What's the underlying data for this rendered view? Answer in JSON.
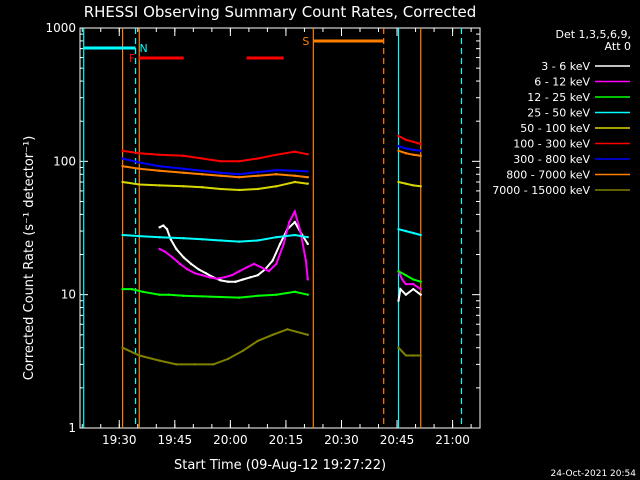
{
  "chart_data": {
    "type": "line",
    "title": "RHESSI Observing Summary Count Rates, Corrected",
    "xlabel": "Start Time (09-Aug-12 19:27:22)",
    "ylabel": "Corrected Count Rate (s⁻¹ detector⁻¹)",
    "y_scale": "log",
    "ylim": [
      1,
      1000
    ],
    "xlim_minutes_from_start": [
      -8,
      100
    ],
    "x_ticks": [
      {
        "label": "19:30",
        "t": 2.6
      },
      {
        "label": "19:45",
        "t": 17.6
      },
      {
        "label": "20:00",
        "t": 32.6
      },
      {
        "label": "20:15",
        "t": 47.6
      },
      {
        "label": "20:30",
        "t": 62.6
      },
      {
        "label": "20:45",
        "t": 77.6
      },
      {
        "label": "21:00",
        "t": 92.6
      }
    ],
    "y_ticks": [
      {
        "label": "1",
        "v": 1
      },
      {
        "label": "10",
        "v": 10
      },
      {
        "label": "100",
        "v": 100
      },
      {
        "label": "1000",
        "v": 1000
      }
    ],
    "legend_header": [
      "Det 1,3,5,6,9,",
      "Att 0"
    ],
    "legend_position": "right",
    "series": [
      {
        "name": "3 - 6 keV",
        "color": "#ffffff",
        "x": [
          13.5,
          14.5,
          15.5,
          16.5,
          18,
          20,
          22,
          24,
          26,
          28,
          30,
          32,
          34,
          36,
          38,
          40,
          42,
          44,
          46,
          48,
          50,
          52,
          53.5,
          78,
          78.5,
          80,
          82,
          84
        ],
        "y": [
          32,
          33,
          31,
          26,
          22,
          19,
          17,
          15.5,
          14.5,
          13.5,
          12.8,
          12.5,
          12.5,
          13,
          13.5,
          14,
          15.5,
          18,
          24,
          31,
          35,
          28,
          24,
          9,
          11,
          10,
          11,
          10
        ]
      },
      {
        "name": "6 - 12 keV",
        "color": "#ff00ff",
        "x": [
          13.5,
          15,
          17,
          19,
          21,
          23,
          25,
          27,
          29,
          31,
          33,
          35,
          37,
          39,
          41,
          43,
          45,
          47,
          48.5,
          50,
          51.5,
          53,
          53.5,
          78,
          79,
          80,
          82,
          84
        ],
        "y": [
          22,
          21,
          19,
          17,
          15.5,
          14.5,
          14,
          13.5,
          13.2,
          13.5,
          14,
          15,
          16,
          17,
          16,
          15,
          17,
          24,
          35,
          42,
          30,
          18,
          13,
          15,
          13,
          12,
          12,
          11
        ]
      },
      {
        "name": "12 - 25 keV",
        "color": "#00ff00",
        "x": [
          3.5,
          6,
          9,
          13.5,
          16,
          20,
          25,
          30,
          35,
          40,
          45,
          50,
          53.5,
          78,
          80,
          82,
          84
        ],
        "y": [
          11,
          11,
          10.5,
          10,
          10,
          9.8,
          9.7,
          9.6,
          9.5,
          9.8,
          10,
          10.5,
          10,
          15,
          14,
          13,
          12.5
        ]
      },
      {
        "name": "25 - 50 keV",
        "color": "#00ffff",
        "x": [
          3.5,
          8,
          13.5,
          20,
          25,
          30,
          35,
          40,
          45,
          50,
          53.5,
          78,
          80,
          82,
          84
        ],
        "y": [
          28,
          27.5,
          27,
          26.5,
          26,
          25.5,
          25,
          25.5,
          27,
          28,
          27,
          31,
          30,
          29,
          28
        ]
      },
      {
        "name": "50 - 100 keV",
        "color": "#d8d800",
        "x": [
          3.5,
          8,
          13.5,
          20,
          25,
          30,
          35,
          40,
          45,
          50,
          53.5,
          78,
          80,
          82,
          84
        ],
        "y": [
          70,
          67,
          66,
          65,
          64,
          62,
          61,
          62,
          65,
          70,
          68,
          70,
          68,
          66,
          65
        ]
      },
      {
        "name": "100 - 300 keV",
        "color": "#ff0000",
        "x": [
          3.5,
          8,
          13.5,
          20,
          25,
          30,
          35,
          40,
          45,
          50,
          53.5,
          78,
          80,
          82,
          84
        ],
        "y": [
          120,
          115,
          112,
          110,
          105,
          100,
          100,
          105,
          112,
          118,
          113,
          155,
          145,
          140,
          135
        ]
      },
      {
        "name": "300 - 800 keV",
        "color": "#0000ff",
        "x": [
          3.5,
          8,
          13.5,
          20,
          25,
          30,
          35,
          40,
          45,
          50,
          53.5,
          78,
          80,
          82,
          84
        ],
        "y": [
          105,
          98,
          92,
          88,
          85,
          82,
          80,
          83,
          86,
          85,
          84,
          130,
          125,
          122,
          120
        ]
      },
      {
        "name": "800 - 7000 keV",
        "color": "#ff8000",
        "x": [
          3.5,
          8,
          13.5,
          20,
          25,
          30,
          35,
          40,
          45,
          50,
          53.5,
          78,
          80,
          82,
          84
        ],
        "y": [
          92,
          88,
          85,
          82,
          80,
          78,
          76,
          78,
          80,
          78,
          76,
          120,
          115,
          112,
          110
        ]
      },
      {
        "name": "7000 - 15000 keV",
        "color": "#808000",
        "x": [
          3.5,
          8,
          13.5,
          18,
          23,
          28,
          32,
          36,
          40,
          44,
          48,
          53.5,
          78,
          80,
          82,
          84
        ],
        "y": [
          4,
          3.5,
          3.2,
          3,
          3,
          3,
          3.3,
          3.8,
          4.5,
          5,
          5.5,
          5,
          4,
          3.5,
          3.5,
          3.5
        ]
      }
    ],
    "flags": [
      {
        "label": "N",
        "color": "#00ffff",
        "segments": [
          [
            -7,
            7
          ]
        ]
      },
      {
        "label": "F",
        "color": "#ff0000",
        "segments": [
          [
            8,
            20
          ],
          [
            37,
            47
          ]
        ]
      },
      {
        "label": "S",
        "color": "#ff8000",
        "segments": [
          [
            55,
            74
          ]
        ]
      }
    ],
    "vlines": [
      {
        "t": -7,
        "color": "#00ffff",
        "style": "solid"
      },
      {
        "t": 7,
        "color": "#00ffff",
        "style": "dash"
      },
      {
        "t": 3.5,
        "color": "#ff8000",
        "style": "solid"
      },
      {
        "t": 8,
        "color": "#ff8000",
        "style": "solid"
      },
      {
        "t": 55,
        "color": "#ff8000",
        "style": "solid"
      },
      {
        "t": 74,
        "color": "#ff8000",
        "style": "dash"
      },
      {
        "t": 78,
        "color": "#00ffff",
        "style": "solid"
      },
      {
        "t": 84,
        "color": "#ff8000",
        "style": "solid"
      },
      {
        "t": 95,
        "color": "#00ffff",
        "style": "dash"
      }
    ],
    "timestamp": "24-Oct-2021 20:54"
  }
}
